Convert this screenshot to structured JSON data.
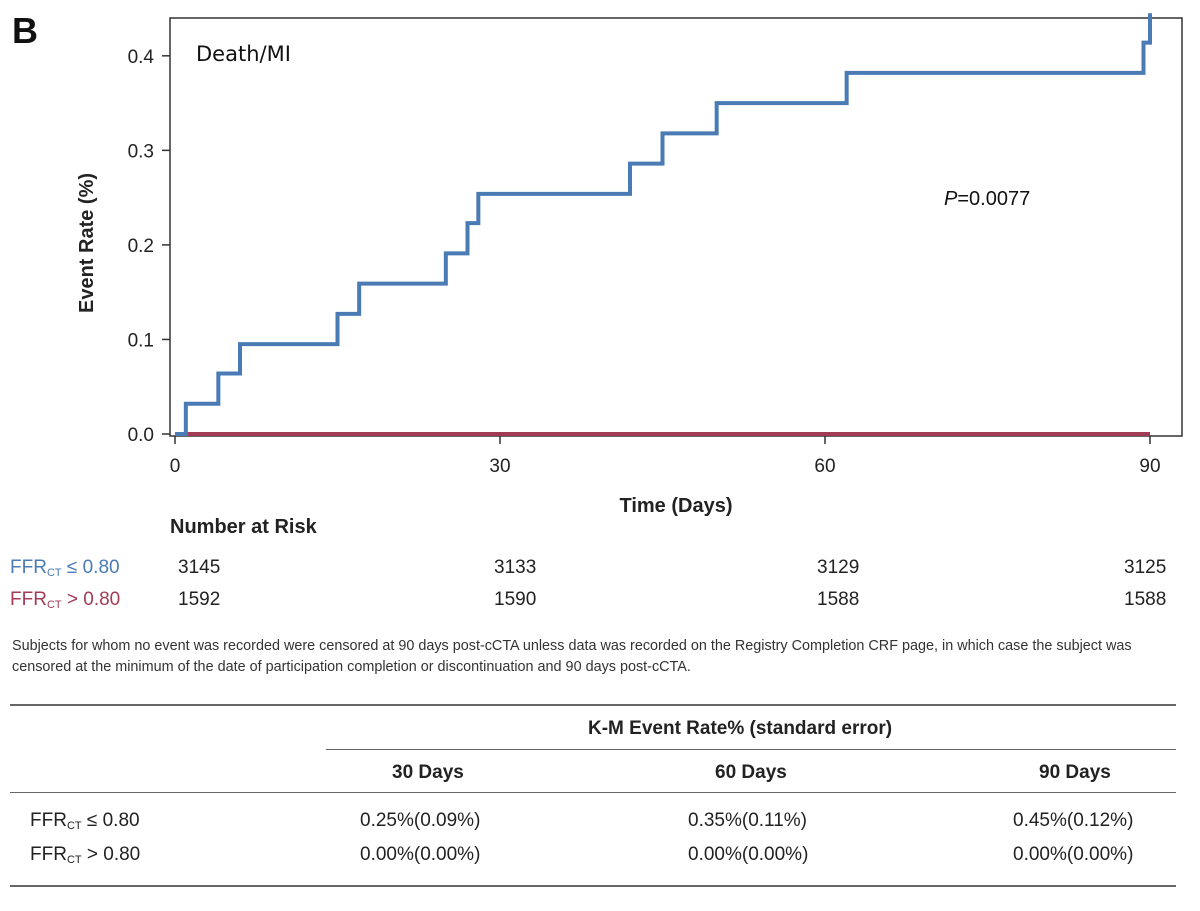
{
  "panel_label": "B",
  "colors": {
    "series_low": "#4a7bb5",
    "series_high": "#a33b55",
    "axis": "#333333"
  },
  "chart_data": {
    "type": "line",
    "step": true,
    "annotation_title": "Death/MI",
    "annotation_p_symbol": "P",
    "annotation_p_value": "=0.0077",
    "xlabel": "Time (Days)",
    "ylabel": "Event Rate (%)",
    "xlim": [
      0,
      90
    ],
    "ylim": [
      0,
      0.44
    ],
    "xticks": [
      0,
      30,
      60,
      90
    ],
    "yticks": [
      0.0,
      0.1,
      0.2,
      0.3,
      0.4
    ],
    "ytick_labels": [
      "0.0",
      "0.1",
      "0.2",
      "0.3",
      "0.4"
    ],
    "grid": false,
    "series": [
      {
        "name_main": "FFR",
        "name_sub": "CT",
        "name_rest": " ≤ 0.80",
        "color": "#4a7bb5",
        "x": [
          0,
          1,
          4,
          6,
          15,
          17,
          25,
          27,
          28,
          42,
          45,
          50,
          62,
          89.4,
          90
        ],
        "y": [
          0,
          0.032,
          0.064,
          0.095,
          0.127,
          0.159,
          0.191,
          0.223,
          0.254,
          0.286,
          0.318,
          0.35,
          0.382,
          0.414,
          0.445
        ]
      },
      {
        "name_main": "FFR",
        "name_sub": "CT",
        "name_rest": " > 0.80",
        "color": "#a33b55",
        "x": [
          0,
          90
        ],
        "y": [
          0,
          0
        ]
      }
    ]
  },
  "risk": {
    "title": "Number at Risk",
    "rows": [
      {
        "label_main": "FFR",
        "label_sub": "CT",
        "label_rest": " ≤ 0.80",
        "values": [
          "3145",
          "3133",
          "3129",
          "3125"
        ]
      },
      {
        "label_main": "FFR",
        "label_sub": "CT",
        "label_rest": " > 0.80",
        "values": [
          "1592",
          "1590",
          "1588",
          "1588"
        ]
      }
    ]
  },
  "footnote": "Subjects for whom no event was recorded were censored at 90 days post-cCTA unless data was recorded on the Registry Completion CRF page, in which case the subject was censored at the minimum of the date of participation completion or discontinuation and 90 days post-cCTA.",
  "table": {
    "group_header": "K-M Event Rate% (standard error)",
    "columns": [
      "30 Days",
      "60 Days",
      "90 Days"
    ],
    "rows": [
      {
        "label_main": "FFR",
        "label_sub": "CT",
        "label_rest": " ≤ 0.80",
        "cells": [
          "0.25%(0.09%)",
          "0.35%(0.11%)",
          "0.45%(0.12%)"
        ]
      },
      {
        "label_main": "FFR",
        "label_sub": "CT",
        "label_rest": " > 0.80",
        "cells": [
          "0.00%(0.00%)",
          "0.00%(0.00%)",
          "0.00%(0.00%)"
        ]
      }
    ]
  }
}
